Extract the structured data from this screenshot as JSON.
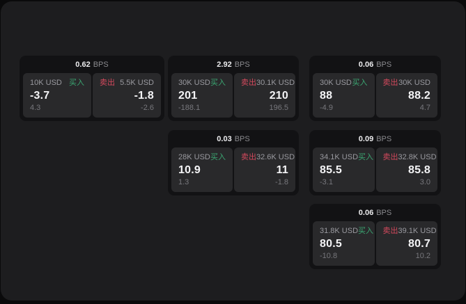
{
  "labels": {
    "bps_unit": "BPS",
    "buy": "买入",
    "sell": "卖出"
  },
  "colors": {
    "buy_accent": "#3ba672",
    "sell_accent": "#d4495d",
    "window_bg": "#1d1d1f",
    "card_bg": "#121214",
    "panel_bg": "#29292b"
  },
  "cards": [
    {
      "bps": "0.62",
      "buy": {
        "size": "10K USD",
        "price": "-3.7",
        "change": "4.3"
      },
      "sell": {
        "size": "5.5K USD",
        "price": "-1.8",
        "change": "-2.6"
      }
    },
    {
      "bps": "2.92",
      "buy": {
        "size": "30K USD",
        "price": "201",
        "change": "-188.1"
      },
      "sell": {
        "size": "30.1K USD",
        "price": "210",
        "change": "196.5"
      }
    },
    {
      "bps": "0.06",
      "buy": {
        "size": "30K USD",
        "price": "88",
        "change": "-4.9"
      },
      "sell": {
        "size": "30K USD",
        "price": "88.2",
        "change": "4.7"
      }
    },
    {
      "bps": "0.03",
      "buy": {
        "size": "28K USD",
        "price": "10.9",
        "change": "1.3"
      },
      "sell": {
        "size": "32.6K USD",
        "price": "11",
        "change": "-1.8"
      }
    },
    {
      "bps": "0.09",
      "buy": {
        "size": "34.1K USD",
        "price": "85.5",
        "change": "-3.1"
      },
      "sell": {
        "size": "32.8K USD",
        "price": "85.8",
        "change": "3.0"
      }
    },
    {
      "bps": "0.06",
      "buy": {
        "size": "31.8K USD",
        "price": "80.5",
        "change": "-10.8"
      },
      "sell": {
        "size": "39.1K USD",
        "price": "80.7",
        "change": "10.2"
      }
    }
  ]
}
